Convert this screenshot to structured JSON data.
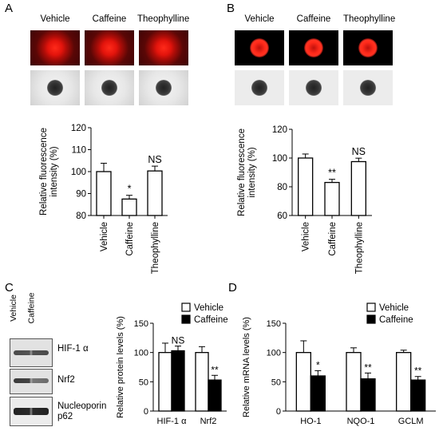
{
  "panels": {
    "A": {
      "label": "A",
      "headers": [
        "Vehicle",
        "Caffeine",
        "Theophylline"
      ]
    },
    "B": {
      "label": "B",
      "headers": [
        "Vehicle",
        "Caffeine",
        "Theophylline"
      ]
    },
    "C": {
      "label": "C",
      "blot_columns": [
        "Vehicle",
        "Caffeine"
      ],
      "blot_labels": [
        "HIF-1 α",
        "Nrf2",
        "Nucleoporin p62"
      ]
    },
    "D": {
      "label": "D"
    }
  },
  "chart_data": [
    {
      "id": "A",
      "type": "bar",
      "categories": [
        "Vehicle",
        "Caffeine",
        "Theophylline"
      ],
      "values": [
        100,
        87.5,
        100.3
      ],
      "errors": [
        3.8,
        1.7,
        2.2
      ],
      "significance": [
        "",
        "*",
        "NS"
      ],
      "ylabel": "Relative fluorescence intensity  (%)",
      "ylim": [
        80,
        120
      ],
      "yticks": [
        80,
        90,
        100,
        110,
        120
      ]
    },
    {
      "id": "B",
      "type": "bar",
      "categories": [
        "Vehicle",
        "Caffeine",
        "Theophylline"
      ],
      "values": [
        100,
        83,
        97.5
      ],
      "errors": [
        2.8,
        2.2,
        2.4
      ],
      "significance": [
        "",
        "**",
        "NS"
      ],
      "ylabel": "Relative fluorescence intensity  (%)",
      "ylim": [
        60,
        120
      ],
      "yticks": [
        60,
        80,
        100,
        120
      ]
    },
    {
      "id": "C",
      "type": "bar",
      "categories": [
        "HIF-1 α",
        "Nrf2"
      ],
      "series": [
        {
          "name": "Vehicle",
          "values": [
            100,
            100
          ],
          "errors": [
            16,
            10
          ]
        },
        {
          "name": "Caffeine",
          "values": [
            103,
            53
          ],
          "errors": [
            8,
            8
          ]
        }
      ],
      "significance": [
        "NS",
        "**"
      ],
      "ylabel": "Relative protein levels (%)",
      "ylim": [
        0,
        150
      ],
      "yticks": [
        0,
        50,
        100,
        150
      ],
      "legend_position": "top"
    },
    {
      "id": "D",
      "type": "bar",
      "categories": [
        "HO-1",
        "NQO-1",
        "GCLM"
      ],
      "series": [
        {
          "name": "Vehicle",
          "values": [
            100,
            100,
            100
          ],
          "errors": [
            20,
            8,
            4
          ]
        },
        {
          "name": "Caffeine",
          "values": [
            60,
            55,
            53
          ],
          "errors": [
            9,
            10,
            6
          ]
        }
      ],
      "significance": [
        "*",
        "**",
        "**"
      ],
      "ylabel": "Relative mRNA levels (%)",
      "ylim": [
        0,
        150
      ],
      "yticks": [
        0,
        50,
        100,
        150
      ],
      "legend_position": "top"
    }
  ]
}
